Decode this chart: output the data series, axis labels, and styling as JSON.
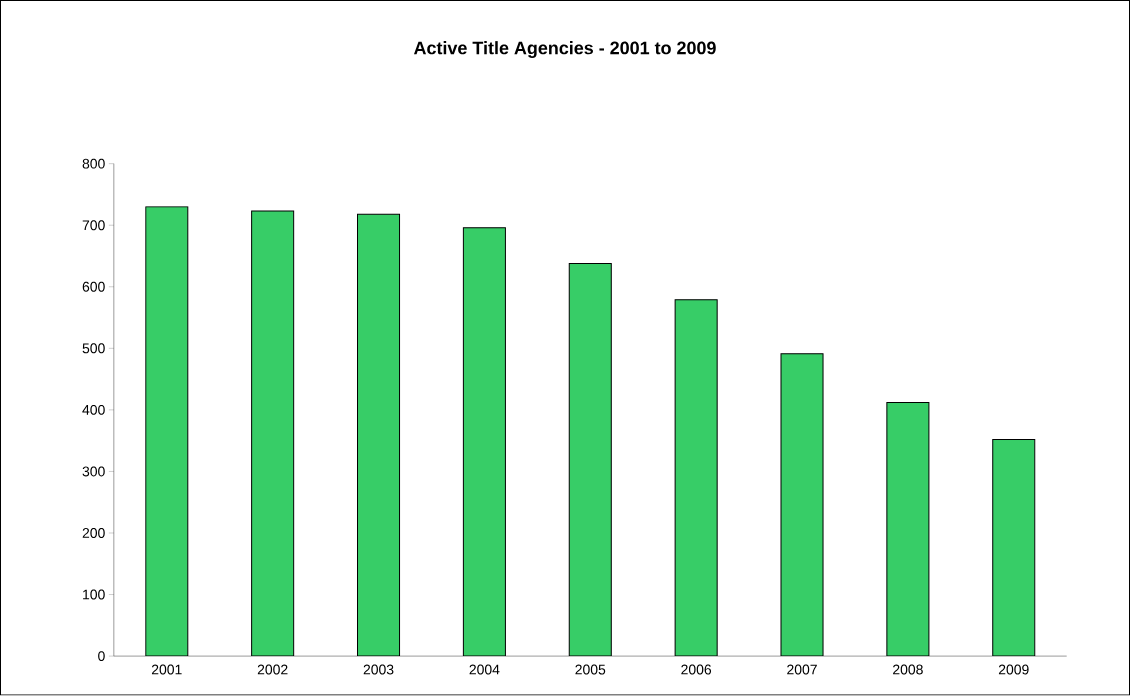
{
  "chart_data": {
    "type": "bar",
    "title": "Active Title Agencies - 2001 to 2009",
    "categories": [
      "2001",
      "2002",
      "2003",
      "2004",
      "2005",
      "2006",
      "2007",
      "2008",
      "2009"
    ],
    "values": [
      730,
      723,
      718,
      696,
      638,
      579,
      491,
      412,
      352
    ],
    "color": "#37cd67",
    "ylim": [
      0,
      800
    ],
    "yticks": [
      0,
      100,
      200,
      300,
      400,
      500,
      600,
      700,
      800
    ]
  }
}
